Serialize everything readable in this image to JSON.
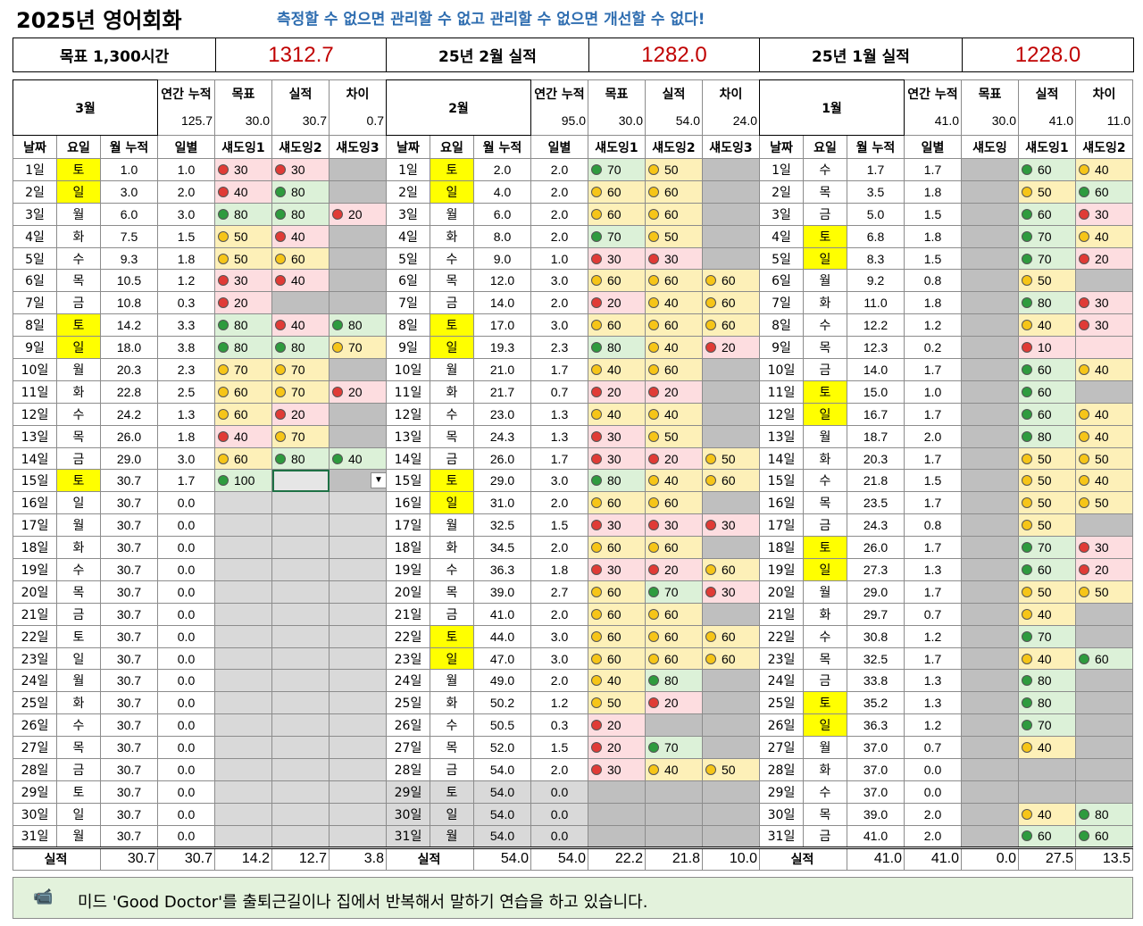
{
  "title": "2025년 영어회화",
  "slogan": "측정할 수 없으면 관리할 수 없고 관리할 수 없으면 개선할 수 없다!",
  "summary": {
    "goal_label": "목표 1,300시간",
    "goal_value": "1312.7",
    "feb_label": "25년 2월 실적",
    "feb_value": "1282.0",
    "jan_label": "25년 1월 실적",
    "jan_value": "1228.0"
  },
  "colors": {
    "green": "#2e9b3e",
    "amber": "#f6c518",
    "red": "#e03b36",
    "value_red": "#c00000",
    "weekend": "#ffff00"
  },
  "memo": {
    "icon": "camera-icon",
    "text": "미드 'Good Doctor'를 출퇴근길이나 집에서 반복해서 말하기 연습을 하고 있습니다."
  },
  "months": [
    {
      "name": "3월",
      "stat_labels": [
        "연간 누적",
        "목표",
        "실적",
        "차이"
      ],
      "stat_values": [
        "125.7",
        "30.0",
        "30.7",
        "0.7"
      ],
      "cols": [
        "날짜",
        "요일",
        "월 누적",
        "일별",
        "섀도잉1",
        "섀도잉2",
        "섀도잉3"
      ],
      "rows": [
        [
          "1일",
          "토",
          "1.0",
          "1.0",
          "r30",
          "r30",
          "x"
        ],
        [
          "2일",
          "일",
          "3.0",
          "2.0",
          "r40",
          "g80",
          "x"
        ],
        [
          "3일",
          "월",
          "6.0",
          "3.0",
          "g80",
          "g80",
          "r20"
        ],
        [
          "4일",
          "화",
          "7.5",
          "1.5",
          "a50",
          "r40",
          "x"
        ],
        [
          "5일",
          "수",
          "9.3",
          "1.8",
          "a50",
          "a60",
          "x"
        ],
        [
          "6일",
          "목",
          "10.5",
          "1.2",
          "r30",
          "r40",
          "x"
        ],
        [
          "7일",
          "금",
          "10.8",
          "0.3",
          "r20",
          "x",
          "x"
        ],
        [
          "8일",
          "토",
          "14.2",
          "3.3",
          "g80",
          "r40",
          "g80"
        ],
        [
          "9일",
          "일",
          "18.0",
          "3.8",
          "g80",
          "g80",
          "a70"
        ],
        [
          "10일",
          "월",
          "20.3",
          "2.3",
          "a70",
          "a70",
          "x"
        ],
        [
          "11일",
          "화",
          "22.8",
          "2.5",
          "a60",
          "a70",
          "r20"
        ],
        [
          "12일",
          "수",
          "24.2",
          "1.3",
          "a60",
          "r20",
          "x"
        ],
        [
          "13일",
          "목",
          "26.0",
          "1.8",
          "r40",
          "a70",
          "x"
        ],
        [
          "14일",
          "금",
          "29.0",
          "3.0",
          "a60",
          "g80",
          "g40"
        ],
        [
          "15일",
          "토",
          "30.7",
          "1.7",
          "g100",
          "sel",
          "dd"
        ],
        [
          "16일",
          "일",
          "30.7",
          "0.0",
          "f",
          "f",
          "f"
        ],
        [
          "17일",
          "월",
          "30.7",
          "0.0",
          "f",
          "f",
          "f"
        ],
        [
          "18일",
          "화",
          "30.7",
          "0.0",
          "f",
          "f",
          "f"
        ],
        [
          "19일",
          "수",
          "30.7",
          "0.0",
          "f",
          "f",
          "f"
        ],
        [
          "20일",
          "목",
          "30.7",
          "0.0",
          "f",
          "f",
          "f"
        ],
        [
          "21일",
          "금",
          "30.7",
          "0.0",
          "f",
          "f",
          "f"
        ],
        [
          "22일",
          "토",
          "30.7",
          "0.0",
          "f",
          "f",
          "f"
        ],
        [
          "23일",
          "일",
          "30.7",
          "0.0",
          "f",
          "f",
          "f"
        ],
        [
          "24일",
          "월",
          "30.7",
          "0.0",
          "f",
          "f",
          "f"
        ],
        [
          "25일",
          "화",
          "30.7",
          "0.0",
          "f",
          "f",
          "f"
        ],
        [
          "26일",
          "수",
          "30.7",
          "0.0",
          "f",
          "f",
          "f"
        ],
        [
          "27일",
          "목",
          "30.7",
          "0.0",
          "f",
          "f",
          "f"
        ],
        [
          "28일",
          "금",
          "30.7",
          "0.0",
          "f",
          "f",
          "f"
        ],
        [
          "29일",
          "토",
          "30.7",
          "0.0",
          "f",
          "f",
          "f"
        ],
        [
          "30일",
          "일",
          "30.7",
          "0.0",
          "f",
          "f",
          "f"
        ],
        [
          "31일",
          "월",
          "30.7",
          "0.0",
          "f",
          "f",
          "f"
        ]
      ],
      "total": [
        "실적",
        "30.7",
        "30.7",
        "14.2",
        "12.7",
        "3.8"
      ]
    },
    {
      "name": "2월",
      "stat_labels": [
        "연간 누적",
        "목표",
        "실적",
        "차이"
      ],
      "stat_values": [
        "95.0",
        "30.0",
        "54.0",
        "24.0"
      ],
      "cols": [
        "날짜",
        "요일",
        "월 누적",
        "일별",
        "섀도잉1",
        "섀도잉2",
        "섀도잉3"
      ],
      "rows": [
        [
          "1일",
          "토",
          "2.0",
          "2.0",
          "g70",
          "a50",
          "x"
        ],
        [
          "2일",
          "일",
          "4.0",
          "2.0",
          "a60",
          "a60",
          "x"
        ],
        [
          "3일",
          "월",
          "6.0",
          "2.0",
          "a60",
          "a60",
          "x"
        ],
        [
          "4일",
          "화",
          "8.0",
          "2.0",
          "g70",
          "a50",
          "x"
        ],
        [
          "5일",
          "수",
          "9.0",
          "1.0",
          "r30",
          "r30",
          "x"
        ],
        [
          "6일",
          "목",
          "12.0",
          "3.0",
          "a60",
          "a60",
          "a60"
        ],
        [
          "7일",
          "금",
          "14.0",
          "2.0",
          "r20",
          "a40",
          "a60"
        ],
        [
          "8일",
          "토",
          "17.0",
          "3.0",
          "a60",
          "a60",
          "a60"
        ],
        [
          "9일",
          "일",
          "19.3",
          "2.3",
          "g80",
          "a40",
          "r20"
        ],
        [
          "10일",
          "월",
          "21.0",
          "1.7",
          "a40",
          "a60",
          "x"
        ],
        [
          "11일",
          "화",
          "21.7",
          "0.7",
          "r20",
          "r20",
          "x"
        ],
        [
          "12일",
          "수",
          "23.0",
          "1.3",
          "a40",
          "a40",
          "x"
        ],
        [
          "13일",
          "목",
          "24.3",
          "1.3",
          "r30",
          "a50",
          "x"
        ],
        [
          "14일",
          "금",
          "26.0",
          "1.7",
          "r30",
          "r20",
          "a50"
        ],
        [
          "15일",
          "토",
          "29.0",
          "3.0",
          "g80",
          "a40",
          "a60"
        ],
        [
          "16일",
          "일",
          "31.0",
          "2.0",
          "a60",
          "a60",
          "x"
        ],
        [
          "17일",
          "월",
          "32.5",
          "1.5",
          "r30",
          "r30",
          "r30"
        ],
        [
          "18일",
          "화",
          "34.5",
          "2.0",
          "a60",
          "a60",
          "x"
        ],
        [
          "19일",
          "수",
          "36.3",
          "1.8",
          "r30",
          "r20",
          "a60"
        ],
        [
          "20일",
          "목",
          "39.0",
          "2.7",
          "a60",
          "g70",
          "r30"
        ],
        [
          "21일",
          "금",
          "41.0",
          "2.0",
          "a60",
          "a60",
          "x"
        ],
        [
          "22일",
          "토",
          "44.0",
          "3.0",
          "a60",
          "a60",
          "a60"
        ],
        [
          "23일",
          "일",
          "47.0",
          "3.0",
          "a60",
          "a60",
          "a60"
        ],
        [
          "24일",
          "월",
          "49.0",
          "2.0",
          "a40",
          "g80",
          "x"
        ],
        [
          "25일",
          "화",
          "50.2",
          "1.2",
          "a50",
          "r20",
          "x"
        ],
        [
          "26일",
          "수",
          "50.5",
          "0.3",
          "r20",
          "x",
          "x"
        ],
        [
          "27일",
          "목",
          "52.0",
          "1.5",
          "r20",
          "g70",
          "x"
        ],
        [
          "28일",
          "금",
          "54.0",
          "2.0",
          "r30",
          "a40",
          "a50"
        ],
        [
          "29일",
          "토",
          "54.0",
          "0.0",
          "x",
          "x",
          "x"
        ],
        [
          "30일",
          "일",
          "54.0",
          "0.0",
          "x",
          "x",
          "x"
        ],
        [
          "31일",
          "월",
          "54.0",
          "0.0",
          "x",
          "x",
          "x"
        ]
      ],
      "total": [
        "실적",
        "54.0",
        "54.0",
        "22.2",
        "21.8",
        "10.0"
      ]
    },
    {
      "name": "1월",
      "stat_labels": [
        "연간 누적",
        "목표",
        "실적",
        "차이"
      ],
      "stat_values": [
        "41.0",
        "30.0",
        "41.0",
        "11.0"
      ],
      "cols": [
        "날짜",
        "요일",
        "월 누적",
        "일별",
        "섀도잉",
        "섀도잉1",
        "섀도잉2"
      ],
      "rows": [
        [
          "1일",
          "수",
          "1.7",
          "1.7",
          "x",
          "g60",
          "a40"
        ],
        [
          "2일",
          "목",
          "3.5",
          "1.8",
          "x",
          "a50",
          "g60"
        ],
        [
          "3일",
          "금",
          "5.0",
          "1.5",
          "x",
          "g60",
          "r30"
        ],
        [
          "4일",
          "토",
          "6.8",
          "1.8",
          "x",
          "g70",
          "a40"
        ],
        [
          "5일",
          "일",
          "8.3",
          "1.5",
          "x",
          "g70",
          "r20"
        ],
        [
          "6일",
          "월",
          "9.2",
          "0.8",
          "x",
          "a50",
          "x"
        ],
        [
          "7일",
          "화",
          "11.0",
          "1.8",
          "x",
          "g80",
          "r30"
        ],
        [
          "8일",
          "수",
          "12.2",
          "1.2",
          "x",
          "a40",
          "r30"
        ],
        [
          "9일",
          "목",
          "12.3",
          "0.2",
          "x",
          "r10",
          "r"
        ],
        [
          "10일",
          "금",
          "14.0",
          "1.7",
          "x",
          "g60",
          "a40"
        ],
        [
          "11일",
          "토",
          "15.0",
          "1.0",
          "x",
          "g60",
          "x"
        ],
        [
          "12일",
          "일",
          "16.7",
          "1.7",
          "x",
          "g60",
          "a40"
        ],
        [
          "13일",
          "월",
          "18.7",
          "2.0",
          "x",
          "g80",
          "a40"
        ],
        [
          "14일",
          "화",
          "20.3",
          "1.7",
          "x",
          "a50",
          "a50"
        ],
        [
          "15일",
          "수",
          "21.8",
          "1.5",
          "x",
          "a50",
          "a40"
        ],
        [
          "16일",
          "목",
          "23.5",
          "1.7",
          "x",
          "a50",
          "a50"
        ],
        [
          "17일",
          "금",
          "24.3",
          "0.8",
          "x",
          "a50",
          "x"
        ],
        [
          "18일",
          "토",
          "26.0",
          "1.7",
          "x",
          "g70",
          "r30"
        ],
        [
          "19일",
          "일",
          "27.3",
          "1.3",
          "x",
          "g60",
          "r20"
        ],
        [
          "20일",
          "월",
          "29.0",
          "1.7",
          "x",
          "a50",
          "a50"
        ],
        [
          "21일",
          "화",
          "29.7",
          "0.7",
          "x",
          "a40",
          "x"
        ],
        [
          "22일",
          "수",
          "30.8",
          "1.2",
          "x",
          "g70",
          "x"
        ],
        [
          "23일",
          "목",
          "32.5",
          "1.7",
          "x",
          "a40",
          "g60"
        ],
        [
          "24일",
          "금",
          "33.8",
          "1.3",
          "x",
          "g80",
          "x"
        ],
        [
          "25일",
          "토",
          "35.2",
          "1.3",
          "x",
          "g80",
          "x"
        ],
        [
          "26일",
          "일",
          "36.3",
          "1.2",
          "x",
          "g70",
          "x"
        ],
        [
          "27일",
          "월",
          "37.0",
          "0.7",
          "x",
          "a40",
          "x"
        ],
        [
          "28일",
          "화",
          "37.0",
          "0.0",
          "x",
          "x",
          "x"
        ],
        [
          "29일",
          "수",
          "37.0",
          "0.0",
          "x",
          "x",
          "x"
        ],
        [
          "30일",
          "목",
          "39.0",
          "2.0",
          "x",
          "a40",
          "g80"
        ],
        [
          "31일",
          "금",
          "41.0",
          "2.0",
          "x",
          "g60",
          "g60"
        ]
      ],
      "total": [
        "실적",
        "41.0",
        "41.0",
        "0.0",
        "27.5",
        "13.5"
      ]
    }
  ]
}
